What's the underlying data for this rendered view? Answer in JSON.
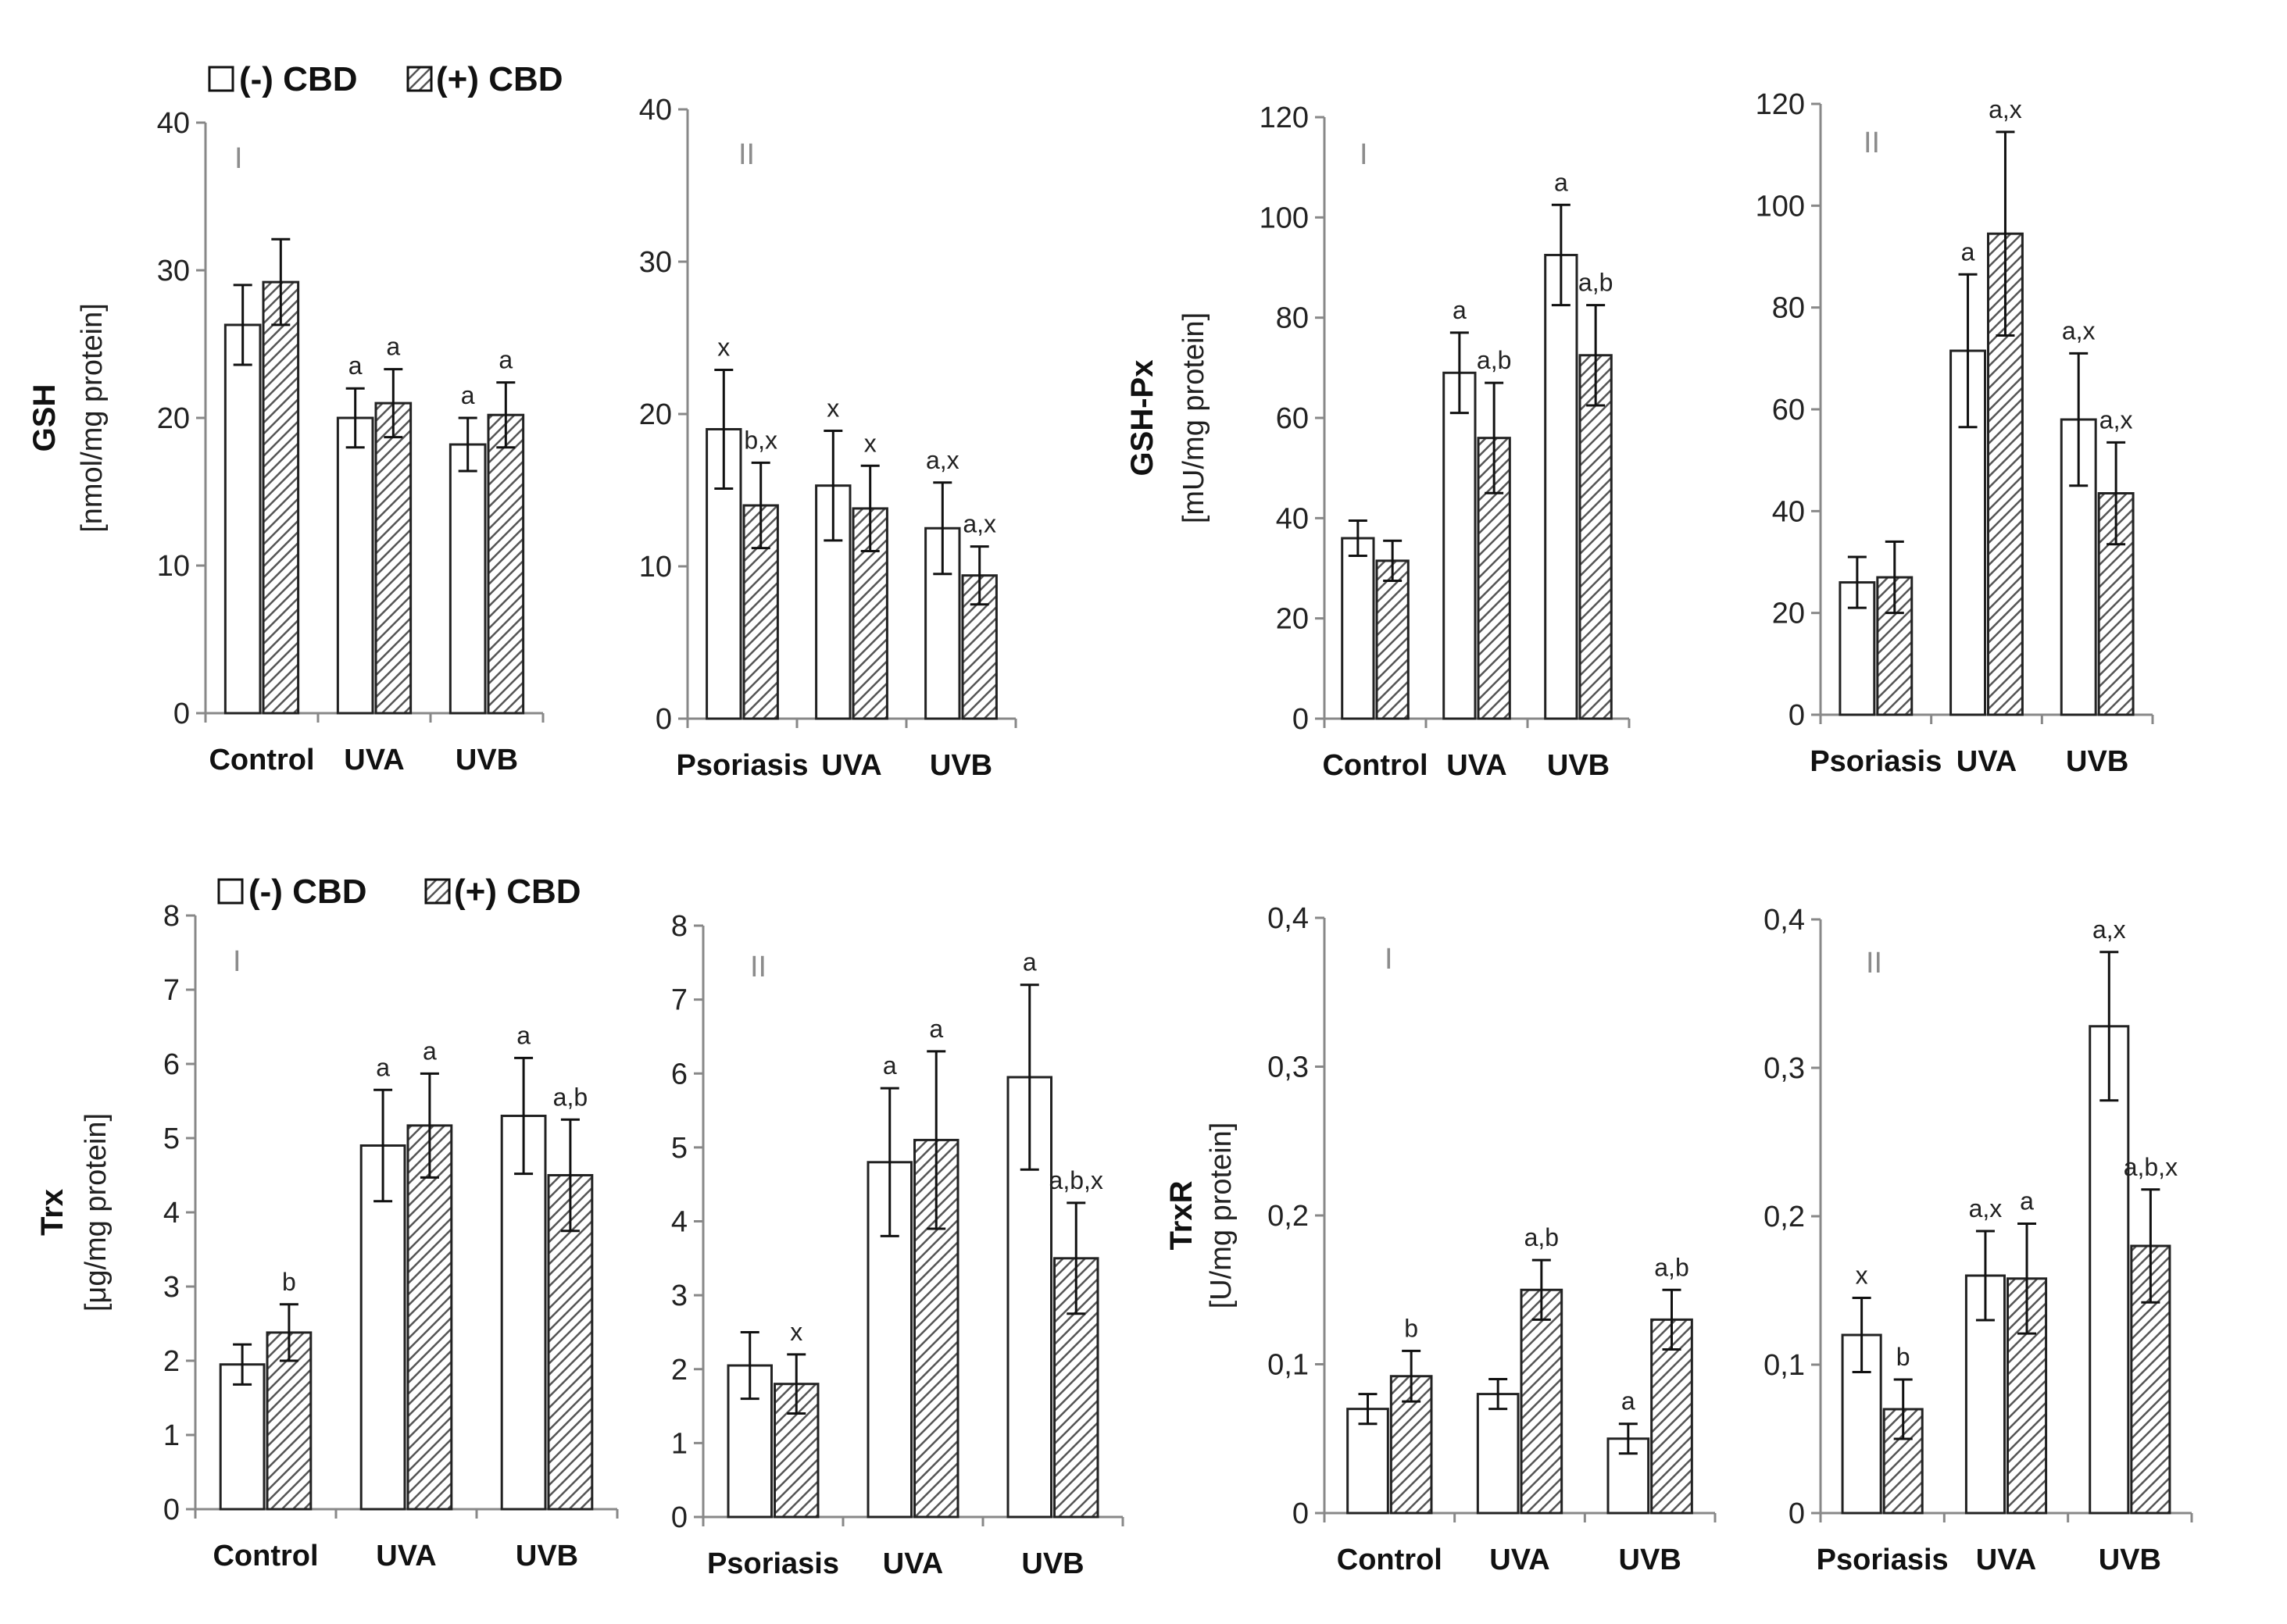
{
  "legend": {
    "minus": "(-) CBD",
    "plus": "(+) CBD"
  },
  "colors": {
    "bar_minus": "#ffffff",
    "bar_plus_hatch": "#555555",
    "axis": "#888888",
    "text": "#111111"
  },
  "chart_data": [
    {
      "type": "bar",
      "id": "gsh-I",
      "panel_label": "I",
      "parameter": "GSH",
      "ylabel": "[nmol/mg protein]",
      "categories": [
        "Control",
        "UVA",
        "UVB"
      ],
      "ylim": [
        0,
        40
      ],
      "yticks": [
        "0",
        "10",
        "20",
        "30",
        "40"
      ],
      "series": [
        {
          "name": "(-) CBD",
          "values": [
            26.3,
            20.0,
            18.2
          ],
          "errors": [
            2.7,
            2.0,
            1.8
          ],
          "annotations": [
            "",
            "a",
            "a"
          ]
        },
        {
          "name": "(+) CBD",
          "values": [
            29.2,
            21.0,
            20.2
          ],
          "errors": [
            2.9,
            2.3,
            2.2
          ],
          "annotations": [
            "",
            "a",
            "a"
          ]
        }
      ]
    },
    {
      "type": "bar",
      "id": "gsh-II",
      "panel_label": "II",
      "parameter": "",
      "ylabel": "",
      "categories": [
        "Psoriasis",
        "UVA",
        "UVB"
      ],
      "ylim": [
        0,
        40
      ],
      "yticks": [
        "0",
        "10",
        "20",
        "30",
        "40"
      ],
      "series": [
        {
          "name": "(-) CBD",
          "values": [
            19.0,
            15.3,
            12.5
          ],
          "errors": [
            3.9,
            3.6,
            3.0
          ],
          "annotations": [
            "x",
            "x",
            "a,x"
          ]
        },
        {
          "name": "(+) CBD",
          "values": [
            14.0,
            13.8,
            9.4
          ],
          "errors": [
            2.8,
            2.8,
            1.9
          ],
          "annotations": [
            "b,x",
            "x",
            "a,x"
          ]
        }
      ]
    },
    {
      "type": "bar",
      "id": "gshpx-I",
      "panel_label": "I",
      "parameter": "GSH-Px",
      "ylabel": "[mU/mg protein]",
      "categories": [
        "Control",
        "UVA",
        "UVB"
      ],
      "ylim": [
        0,
        120
      ],
      "yticks": [
        "0",
        "20",
        "40",
        "60",
        "80",
        "100",
        "120"
      ],
      "series": [
        {
          "name": "(-) CBD",
          "values": [
            36,
            69,
            92.5
          ],
          "errors": [
            3.5,
            8.0,
            10.0
          ],
          "annotations": [
            "",
            "a",
            "a"
          ]
        },
        {
          "name": "(+) CBD",
          "values": [
            31.5,
            56,
            72.5
          ],
          "errors": [
            4.0,
            11.0,
            10.0
          ],
          "annotations": [
            "",
            "a,b",
            "a,b"
          ]
        }
      ]
    },
    {
      "type": "bar",
      "id": "gshpx-II",
      "panel_label": "II",
      "parameter": "",
      "ylabel": "",
      "categories": [
        "Psoriasis",
        "UVA",
        "UVB"
      ],
      "ylim": [
        0,
        120
      ],
      "yticks": [
        "0",
        "20",
        "40",
        "60",
        "80",
        "100",
        "120"
      ],
      "series": [
        {
          "name": "(-) CBD",
          "values": [
            26,
            71.5,
            58
          ],
          "errors": [
            5.0,
            15.0,
            13.0
          ],
          "annotations": [
            "",
            "a",
            "a,x"
          ]
        },
        {
          "name": "(+) CBD",
          "values": [
            27,
            94.5,
            43.5
          ],
          "errors": [
            7.0,
            20.0,
            10.0
          ],
          "annotations": [
            "",
            "a,x",
            "a,x"
          ]
        }
      ]
    },
    {
      "type": "bar",
      "id": "trx-I",
      "panel_label": "I",
      "parameter": "Trx",
      "ylabel": "[μg/mg protein]",
      "categories": [
        "Control",
        "UVA",
        "UVB"
      ],
      "ylim": [
        0,
        8
      ],
      "yticks": [
        "0",
        "1",
        "2",
        "3",
        "4",
        "5",
        "6",
        "7",
        "8"
      ],
      "series": [
        {
          "name": "(-) CBD",
          "values": [
            1.95,
            4.9,
            5.3
          ],
          "errors": [
            0.27,
            0.75,
            0.78
          ],
          "annotations": [
            "",
            "a",
            "a"
          ]
        },
        {
          "name": "(+) CBD",
          "values": [
            2.38,
            5.17,
            4.5
          ],
          "errors": [
            0.38,
            0.7,
            0.75
          ],
          "annotations": [
            "b",
            "a",
            "a,b"
          ]
        }
      ]
    },
    {
      "type": "bar",
      "id": "trx-II",
      "panel_label": "II",
      "parameter": "",
      "ylabel": "",
      "categories": [
        "Psoriasis",
        "UVA",
        "UVB"
      ],
      "ylim": [
        0,
        8
      ],
      "yticks": [
        "0",
        "1",
        "2",
        "3",
        "4",
        "5",
        "6",
        "7",
        "8"
      ],
      "series": [
        {
          "name": "(-) CBD",
          "values": [
            2.05,
            4.8,
            5.95
          ],
          "errors": [
            0.45,
            1.0,
            1.25
          ],
          "annotations": [
            "",
            "a",
            "a"
          ]
        },
        {
          "name": "(+) CBD",
          "values": [
            1.8,
            5.1,
            3.5
          ],
          "errors": [
            0.4,
            1.2,
            0.75
          ],
          "annotations": [
            "x",
            "a",
            "a,b,x"
          ]
        }
      ]
    },
    {
      "type": "bar",
      "id": "trxr-I",
      "panel_label": "I",
      "parameter": "TrxR",
      "ylabel": "[U/mg protein]",
      "categories": [
        "Control",
        "UVA",
        "UVB"
      ],
      "ylim": [
        0,
        0.4
      ],
      "yticks": [
        "0",
        "0,1",
        "0,2",
        "0,3",
        "0,4"
      ],
      "series": [
        {
          "name": "(-) CBD",
          "values": [
            0.07,
            0.08,
            0.05
          ],
          "errors": [
            0.01,
            0.01,
            0.01
          ],
          "annotations": [
            "",
            "",
            "a"
          ]
        },
        {
          "name": "(+) CBD",
          "values": [
            0.092,
            0.15,
            0.13
          ],
          "errors": [
            0.017,
            0.02,
            0.02
          ],
          "annotations": [
            "b",
            "a,b",
            "a,b"
          ]
        }
      ]
    },
    {
      "type": "bar",
      "id": "trxr-II",
      "panel_label": "II",
      "parameter": "",
      "ylabel": "",
      "categories": [
        "Psoriasis",
        "UVA",
        "UVB"
      ],
      "ylim": [
        0,
        0.4
      ],
      "yticks": [
        "0",
        "0,1",
        "0,2",
        "0,3",
        "0,4"
      ],
      "series": [
        {
          "name": "(-) CBD",
          "values": [
            0.12,
            0.16,
            0.328
          ],
          "errors": [
            0.025,
            0.03,
            0.05
          ],
          "annotations": [
            "x",
            "a,x",
            "a,x"
          ]
        },
        {
          "name": "(+) CBD",
          "values": [
            0.07,
            0.158,
            0.18
          ],
          "errors": [
            0.02,
            0.037,
            0.038
          ],
          "annotations": [
            "b",
            "a",
            "a,b,x"
          ]
        }
      ]
    }
  ]
}
